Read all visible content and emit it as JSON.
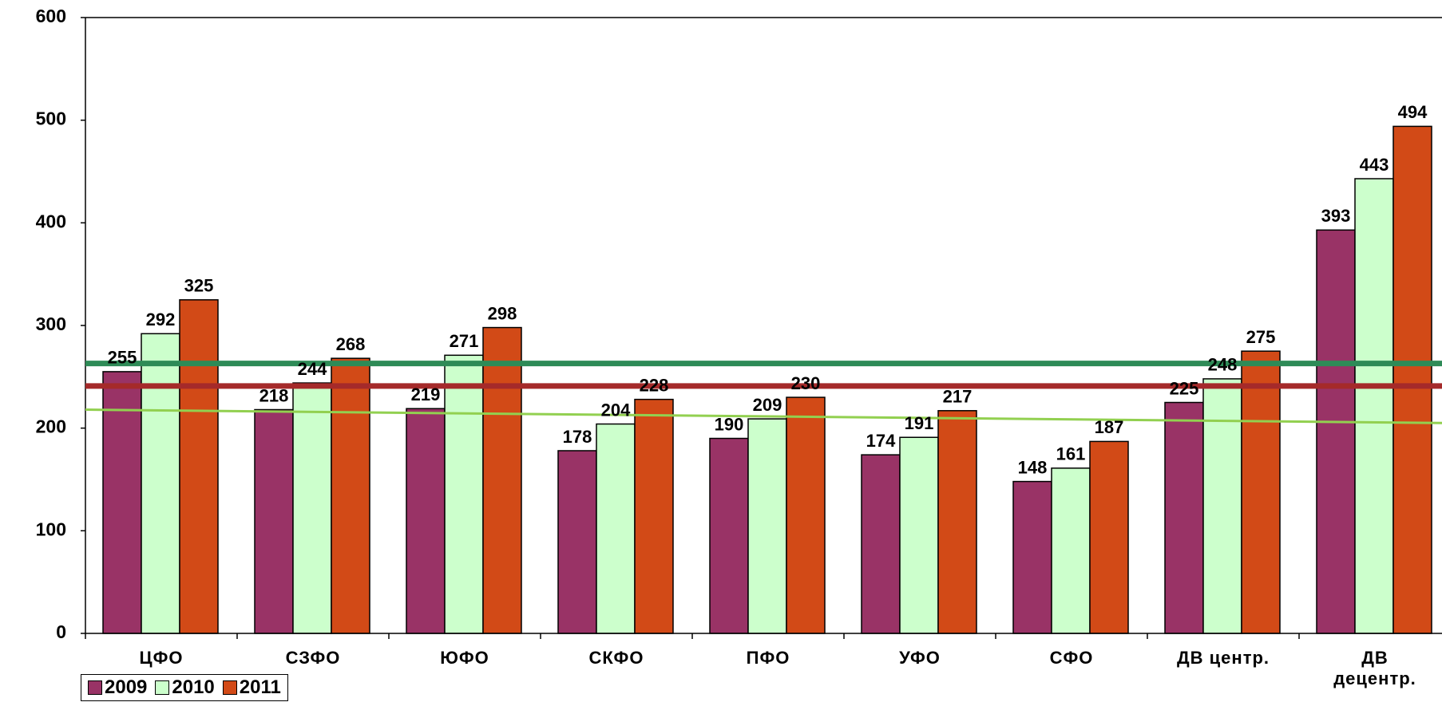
{
  "chart_data": {
    "type": "bar",
    "categories": [
      "ЦФО",
      "СЗФО",
      "ЮФО",
      "СКФО",
      "ПФО",
      "УФО",
      "СФО",
      "ДВ центр.",
      "ДВ\nдецентр."
    ],
    "series": [
      {
        "name": "2009",
        "color": "#993366",
        "values": [
          255,
          218,
          219,
          178,
          190,
          174,
          148,
          225,
          393
        ]
      },
      {
        "name": "2010",
        "color": "#ccffcc",
        "values": [
          292,
          244,
          271,
          204,
          209,
          191,
          161,
          248,
          443
        ]
      },
      {
        "name": "2011",
        "color": "#d24a17",
        "values": [
          325,
          268,
          298,
          228,
          230,
          217,
          187,
          275,
          494
        ]
      }
    ],
    "ylim": [
      0,
      600
    ],
    "yticks": [
      0,
      100,
      200,
      300,
      400,
      500,
      600
    ],
    "hlines": [
      {
        "value": 263,
        "color": "#2e8b57"
      },
      {
        "value": 241,
        "color": "#a52a2a"
      }
    ],
    "trend_line": {
      "start": 218,
      "end": 205,
      "color": "#92d050"
    },
    "legend": "bottom-left"
  }
}
